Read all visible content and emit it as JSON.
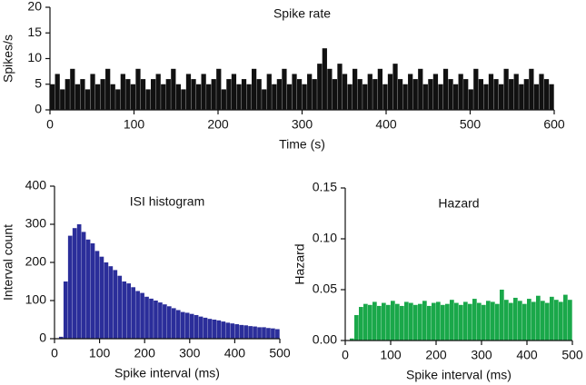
{
  "chart_data": [
    {
      "type": "histogram",
      "title": "Spike rate",
      "xlabel": "Time (s)",
      "ylabel": "Spikes/s",
      "color": "#111111",
      "bins": [
        0,
        6,
        12,
        18,
        24,
        30,
        36,
        42,
        48,
        54,
        60,
        66,
        72,
        78,
        84,
        90,
        96,
        102,
        108,
        114,
        120,
        126,
        132,
        138,
        144,
        150,
        156,
        162,
        168,
        174,
        180,
        186,
        192,
        198,
        204,
        210,
        216,
        222,
        228,
        234,
        240,
        246,
        252,
        258,
        264,
        270,
        276,
        282,
        288,
        294,
        300,
        306,
        312,
        318,
        324,
        330,
        336,
        342,
        348,
        354,
        360,
        366,
        372,
        378,
        384,
        390,
        396,
        402,
        408,
        414,
        420,
        426,
        432,
        438,
        444,
        450,
        456,
        462,
        468,
        474,
        480,
        486,
        492,
        498,
        504,
        510,
        516,
        522,
        528,
        534,
        540,
        546,
        552,
        558,
        564,
        570,
        576,
        582,
        588,
        594,
        600
      ],
      "values": [
        5,
        7,
        4,
        6,
        8,
        5,
        6,
        4,
        7,
        5,
        6,
        8,
        5,
        4,
        7,
        6,
        5,
        8,
        6,
        4,
        6,
        7,
        5,
        6,
        8,
        5,
        4,
        7,
        6,
        5,
        7,
        5,
        6,
        8,
        4,
        6,
        7,
        5,
        6,
        5,
        8,
        6,
        4,
        7,
        5,
        6,
        8,
        5,
        7,
        6,
        5,
        7,
        6,
        9,
        12,
        8,
        6,
        9,
        7,
        5,
        8,
        6,
        5,
        7,
        6,
        8,
        5,
        7,
        9,
        6,
        5,
        7,
        6,
        8,
        5,
        6,
        7,
        5,
        8,
        6,
        5,
        7,
        6,
        4,
        8,
        6,
        5,
        7,
        6,
        5,
        8,
        6,
        7,
        5,
        6,
        8,
        5,
        7,
        6,
        5
      ],
      "xlim": [
        0,
        600
      ],
      "xticks": [
        0,
        100,
        200,
        300,
        400,
        500,
        600
      ],
      "ylim": [
        0,
        20
      ],
      "yticks": [
        0,
        5,
        10,
        15,
        20
      ]
    },
    {
      "type": "histogram",
      "title": "ISI histogram",
      "xlabel": "Spike interval (ms)",
      "ylabel": "Interval count",
      "color": "#2b2e9a",
      "bins": [
        0,
        10,
        20,
        30,
        40,
        50,
        60,
        70,
        80,
        90,
        100,
        110,
        120,
        130,
        140,
        150,
        160,
        170,
        180,
        190,
        200,
        210,
        220,
        230,
        240,
        250,
        260,
        270,
        280,
        290,
        300,
        310,
        320,
        330,
        340,
        350,
        360,
        370,
        380,
        390,
        400,
        410,
        420,
        430,
        440,
        450,
        460,
        470,
        480,
        490,
        500
      ],
      "values": [
        0,
        5,
        150,
        270,
        290,
        300,
        280,
        260,
        250,
        230,
        215,
        200,
        190,
        180,
        165,
        150,
        145,
        135,
        125,
        120,
        110,
        105,
        100,
        95,
        90,
        85,
        80,
        75,
        70,
        68,
        65,
        62,
        58,
        55,
        52,
        50,
        48,
        45,
        42,
        40,
        38,
        36,
        35,
        33,
        32,
        30,
        30,
        28,
        27,
        25
      ],
      "xlim": [
        0,
        500
      ],
      "xticks": [
        0,
        100,
        200,
        300,
        400,
        500
      ],
      "ylim": [
        0,
        400
      ],
      "yticks": [
        0,
        100,
        200,
        300,
        400
      ]
    },
    {
      "type": "histogram",
      "title": "Hazard",
      "xlabel": "Spike interval (ms)",
      "ylabel": "Hazard",
      "color": "#1aa84a",
      "bins": [
        0,
        10,
        20,
        30,
        40,
        50,
        60,
        70,
        80,
        90,
        100,
        110,
        120,
        130,
        140,
        150,
        160,
        170,
        180,
        190,
        200,
        210,
        220,
        230,
        240,
        250,
        260,
        270,
        280,
        290,
        300,
        310,
        320,
        330,
        340,
        350,
        360,
        370,
        380,
        390,
        400,
        410,
        420,
        430,
        440,
        450,
        460,
        470,
        480,
        490,
        500
      ],
      "values": [
        0,
        0.002,
        0.025,
        0.033,
        0.036,
        0.035,
        0.038,
        0.034,
        0.037,
        0.035,
        0.039,
        0.036,
        0.034,
        0.038,
        0.037,
        0.035,
        0.036,
        0.039,
        0.034,
        0.037,
        0.038,
        0.035,
        0.036,
        0.04,
        0.037,
        0.035,
        0.038,
        0.036,
        0.041,
        0.037,
        0.035,
        0.039,
        0.038,
        0.036,
        0.05,
        0.04,
        0.037,
        0.042,
        0.039,
        0.036,
        0.041,
        0.038,
        0.044,
        0.039,
        0.037,
        0.043,
        0.04,
        0.038,
        0.045,
        0.04
      ],
      "xlim": [
        0,
        500
      ],
      "xticks": [
        0,
        100,
        200,
        300,
        400,
        500
      ],
      "ylim": [
        0,
        0.15
      ],
      "yticks": [
        {
          "value": 0,
          "label": "0.00"
        },
        {
          "value": 0.05,
          "label": "0.05"
        },
        {
          "value": 0.1,
          "label": "0.10"
        },
        {
          "value": 0.15,
          "label": "0.15"
        }
      ]
    }
  ]
}
